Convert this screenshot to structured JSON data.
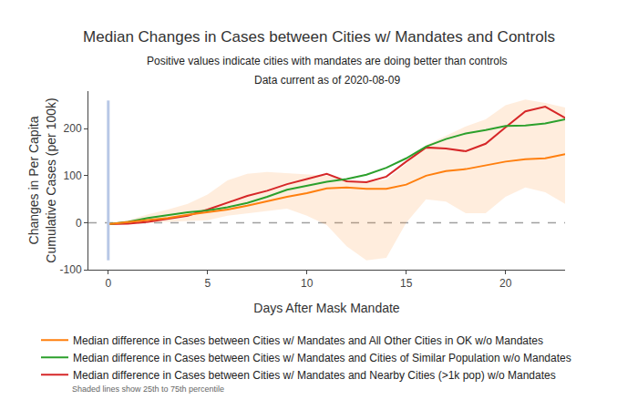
{
  "chart_data": {
    "type": "line",
    "title": "Median Changes in Cases between Cities w/ Mandates and Controls",
    "subtitle": [
      "Positive values indicate cities with mandates are doing better than controls",
      "Data current as of 2020-08-09"
    ],
    "x_label": "Days After Mask Mandate",
    "y_label": "Changes in Per Capita\nCumulative Cases (per 100k)",
    "x": [
      0,
      1,
      2,
      3,
      4,
      5,
      6,
      7,
      8,
      9,
      10,
      11,
      12,
      13,
      14,
      15,
      16,
      17,
      18,
      19,
      20,
      21,
      22,
      23
    ],
    "series": [
      {
        "name": "Median difference in Cases between Cities w/ Mandates and Nearby Cities (>1k pop) w/o Mandates",
        "color": "#d62728",
        "values": [
          -3,
          -2,
          2,
          8,
          15,
          28,
          43,
          57,
          68,
          82,
          93,
          104,
          88,
          86,
          98,
          130,
          160,
          158,
          152,
          168,
          203,
          237,
          247,
          223
        ]
      },
      {
        "name": "Median difference in Cases between Cities w/ Mandates and Cities of Similar Population w/o Mandates",
        "color": "#2ca02c",
        "values": [
          -3,
          2,
          10,
          16,
          22,
          26,
          33,
          42,
          55,
          70,
          79,
          87,
          93,
          102,
          117,
          137,
          162,
          178,
          190,
          197,
          206,
          207,
          211,
          220
        ]
      },
      {
        "name": "Median difference in Cases between Cities w/ Mandates and All Other Cities in OK w/o Mandates",
        "color": "#ff7f0e",
        "values": [
          -3,
          1,
          6,
          10,
          17,
          22,
          28,
          36,
          46,
          55,
          63,
          73,
          75,
          72,
          72,
          81,
          100,
          110,
          114,
          122,
          130,
          135,
          137,
          146
        ],
        "p25": [
          -3,
          -2,
          0,
          2,
          3,
          5,
          15,
          20,
          25,
          30,
          15,
          -5,
          -50,
          -80,
          -75,
          0,
          50,
          45,
          20,
          20,
          55,
          75,
          65,
          40
        ],
        "p75": [
          -3,
          5,
          18,
          28,
          40,
          60,
          90,
          104,
          108,
          105,
          103,
          100,
          90,
          87,
          92,
          125,
          165,
          185,
          205,
          220,
          250,
          262,
          255,
          245
        ]
      }
    ],
    "annotations": [
      "Shaded lines show 25th to 75th percentile"
    ],
    "xlim": [
      -1,
      23
    ],
    "xticks": [
      0,
      5,
      10,
      15,
      20
    ],
    "ylim": [
      -100,
      280
    ],
    "yticks": [
      -100,
      0,
      100,
      200
    ],
    "grid": false,
    "legend": "bottom",
    "vline": {
      "x": 0,
      "y": [
        -80,
        260
      ],
      "color": "#b8c8e6"
    },
    "hline": {
      "y": 0,
      "color": "#a0a0a0",
      "line_style": "dash"
    }
  }
}
